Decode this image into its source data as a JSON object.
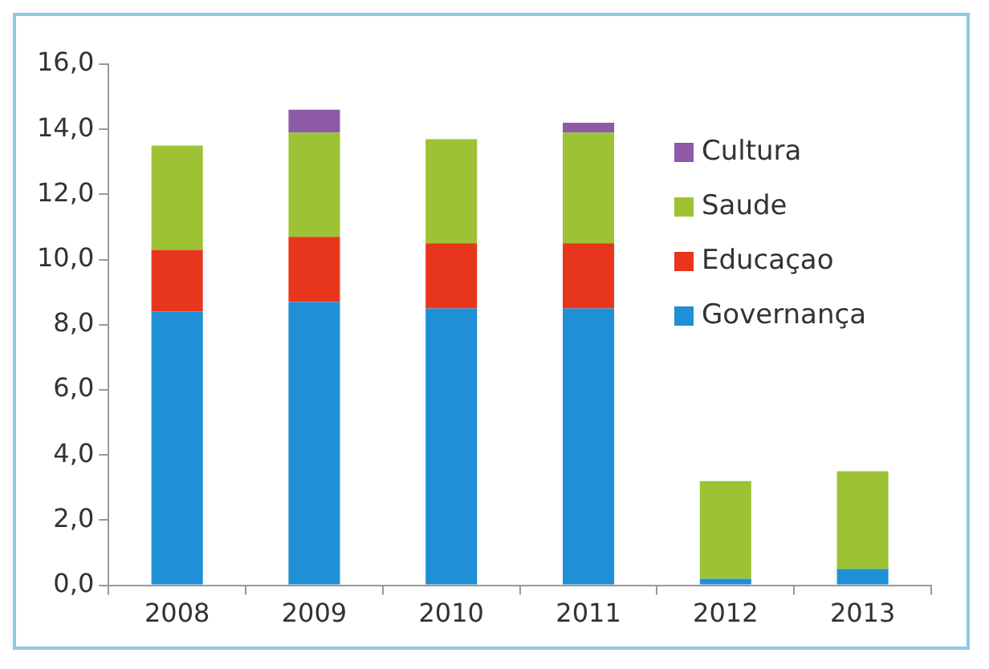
{
  "chart_data": {
    "type": "bar",
    "stacked": true,
    "categories": [
      "2008",
      "2009",
      "2010",
      "2011",
      "2012",
      "2013"
    ],
    "series": [
      {
        "name": "Governança",
        "color": "#1f8fd6",
        "values": [
          8.4,
          8.7,
          8.5,
          8.5,
          0.2,
          0.5
        ]
      },
      {
        "name": "Educaçao",
        "color": "#e8361c",
        "values": [
          1.9,
          2.0,
          2.0,
          2.0,
          0,
          0
        ]
      },
      {
        "name": "Saude",
        "color": "#9dc233",
        "values": [
          3.2,
          3.2,
          3.2,
          3.4,
          3.0,
          3.0
        ]
      },
      {
        "name": "Cultura",
        "color": "#8e5aa8",
        "values": [
          0,
          0.7,
          0,
          0.3,
          0,
          0
        ]
      }
    ],
    "ylim": [
      0,
      16
    ],
    "yticks": [
      {
        "value": 0,
        "label": "0,0"
      },
      {
        "value": 2,
        "label": "2,0"
      },
      {
        "value": 4,
        "label": "4,0"
      },
      {
        "value": 6,
        "label": "6,0"
      },
      {
        "value": 8,
        "label": "8,0"
      },
      {
        "value": 10,
        "label": "10,0"
      },
      {
        "value": 12,
        "label": "12,0"
      },
      {
        "value": 14,
        "label": "14,0"
      },
      {
        "value": 16,
        "label": "16,0"
      }
    ],
    "grid": false,
    "legend": "top right"
  }
}
